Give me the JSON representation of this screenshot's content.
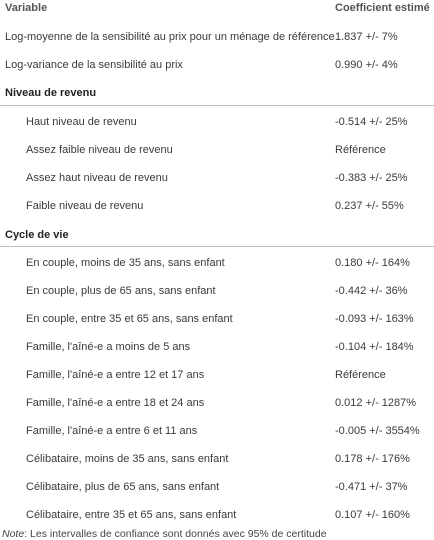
{
  "header": {
    "variable": "Variable",
    "coefficient": "Coefficient estimé"
  },
  "general": [
    {
      "label": "Log-moyenne de la sensibilité au prix pour un ménage de référence",
      "value": "1.837 +/- 7%"
    },
    {
      "label": "Log-variance de la sensibilité au prix",
      "value": "0.990 +/- 4%"
    }
  ],
  "income": {
    "title": "Niveau de revenu",
    "rows": [
      {
        "label": "Haut niveau de revenu",
        "value": "-0.514 +/- 25%"
      },
      {
        "label": "Assez faible niveau de revenu",
        "value": "Référence"
      },
      {
        "label": "Assez haut niveau de revenu",
        "value": "-0.383 +/- 25%"
      },
      {
        "label": "Faible niveau de revenu",
        "value": "0.237 +/- 55%"
      }
    ]
  },
  "lifecycle": {
    "title": "Cycle de vie",
    "rows": [
      {
        "label": "En couple, moins de 35 ans, sans enfant",
        "value": "0.180 +/- 164%"
      },
      {
        "label": "En couple, plus de 65 ans, sans enfant",
        "value": "-0.442 +/- 36%"
      },
      {
        "label": "En couple, entre 35 et 65 ans, sans enfant",
        "value": "-0.093 +/- 163%"
      },
      {
        "label": "Famille, l'aîné-e a moins de 5 ans",
        "value": "-0.104 +/- 184%"
      },
      {
        "label": "Famille, l'aîné-e a entre 12 et 17 ans",
        "value": "Référence"
      },
      {
        "label": "Famille, l'aîné-e a entre 18 et 24 ans",
        "value": "0.012 +/- 1287%"
      },
      {
        "label": "Famille, l'aîné-e a entre 6 et 11 ans",
        "value": "-0.005 +/- 3554%"
      },
      {
        "label": "Célibataire, moins de 35 ans, sans enfant",
        "value": "0.178 +/- 176%"
      },
      {
        "label": "Célibataire, plus de 65 ans, sans enfant",
        "value": "-0.471 +/- 37%"
      },
      {
        "label": "Célibataire, entre 35 et 65 ans, sans enfant",
        "value": "0.107 +/- 160%"
      }
    ]
  },
  "note": {
    "label": "Note",
    "text": ": Les intervalles de confiance sont donnés avec 95% de certitude"
  }
}
